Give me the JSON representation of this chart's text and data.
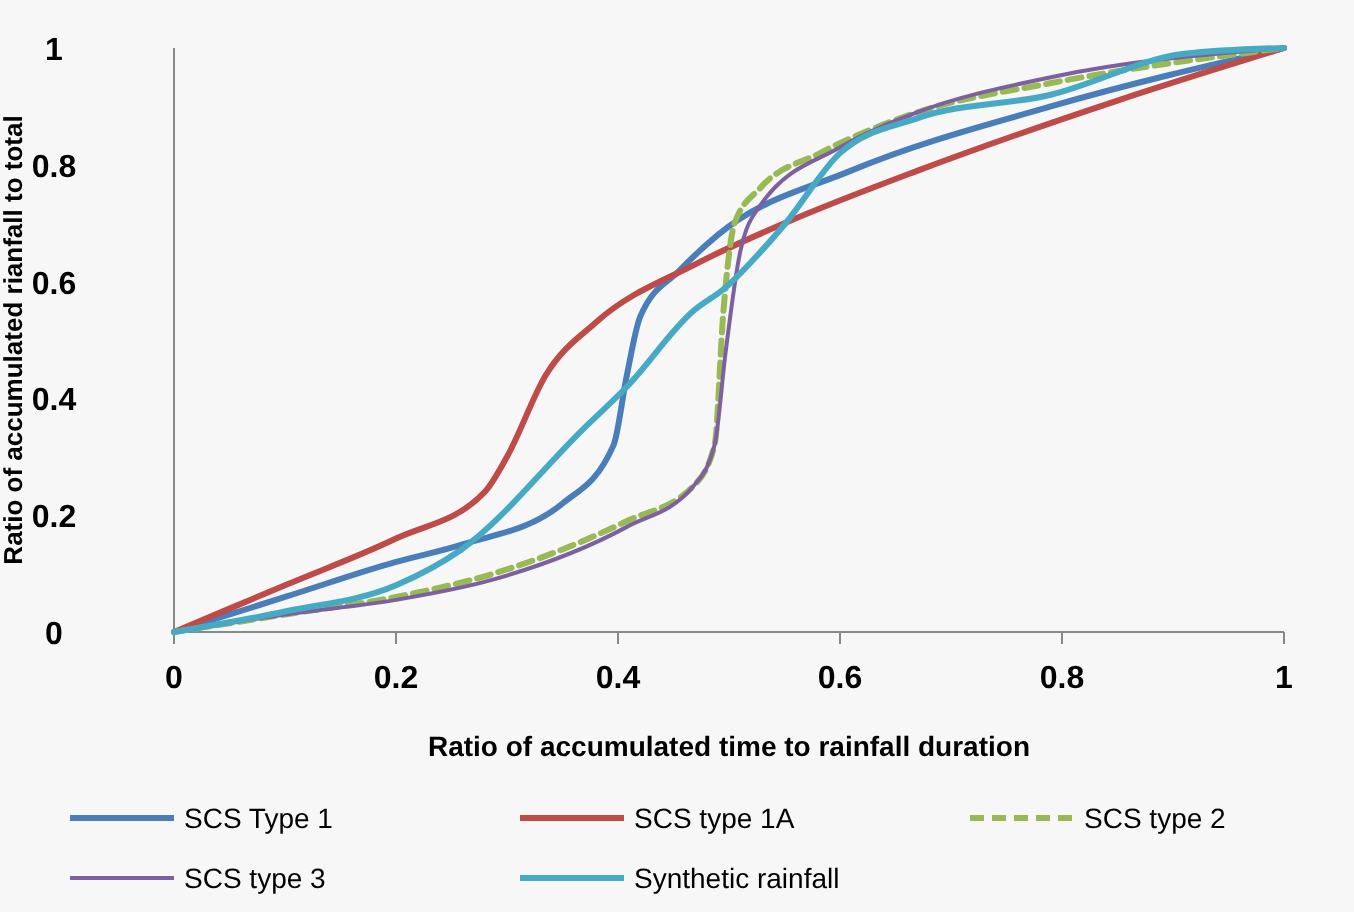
{
  "chart_data": {
    "type": "line",
    "xlabel": "Ratio of accumulated time to rainfall duration",
    "ylabel": "Ratio of accumulated rianfall to total",
    "xlim": [
      0,
      1
    ],
    "ylim": [
      0,
      1
    ],
    "xticks": [
      0,
      0.2,
      0.4,
      0.6,
      0.8,
      1
    ],
    "yticks": [
      0,
      0.2,
      0.4,
      0.6,
      0.8,
      1
    ],
    "grid": false,
    "legend": "bottom",
    "marker": "none",
    "series": [
      {
        "name": "SCS Type 1",
        "color": "#4a7ebb",
        "line_style": "solid",
        "x": [
          0,
          0.1,
          0.2,
          0.26,
          0.35,
          0.396,
          0.408,
          0.42,
          0.456,
          0.49,
          0.61,
          0.79,
          1
        ],
        "values": [
          0,
          0.06,
          0.12,
          0.15,
          0.22,
          0.32,
          0.44,
          0.54,
          0.62,
          0.68,
          0.79,
          0.9,
          1
        ]
      },
      {
        "name": "SCS type 1A",
        "color": "#be4b48",
        "line_style": "solid",
        "x": [
          0,
          0.1,
          0.2,
          0.28,
          0.3,
          0.335,
          0.38,
          0.47,
          0.55,
          0.67,
          0.85,
          1
        ],
        "values": [
          0,
          0.08,
          0.16,
          0.24,
          0.3,
          0.44,
          0.53,
          0.63,
          0.7,
          0.79,
          0.91,
          1
        ]
      },
      {
        "name": "SCS type 2",
        "color": "#98b954",
        "line_style": "dashed",
        "x": [
          0,
          0.1,
          0.2,
          0.288,
          0.408,
          0.468,
          0.487,
          0.495,
          0.505,
          0.528,
          0.582,
          0.67,
          0.79,
          1
        ],
        "values": [
          0,
          0.03,
          0.06,
          0.1,
          0.19,
          0.25,
          0.32,
          0.55,
          0.7,
          0.76,
          0.82,
          0.89,
          0.94,
          1
        ]
      },
      {
        "name": "SCS type 3",
        "color": "#7d60a0",
        "line_style": "solid",
        "x": [
          0,
          0.1,
          0.2,
          0.288,
          0.408,
          0.468,
          0.487,
          0.497,
          0.51,
          0.528,
          0.6,
          0.67,
          0.79,
          1
        ],
        "values": [
          0,
          0.03,
          0.055,
          0.09,
          0.18,
          0.25,
          0.32,
          0.48,
          0.65,
          0.73,
          0.83,
          0.89,
          0.95,
          1
        ]
      },
      {
        "name": "Synthetic rainfall",
        "color": "#46aac5",
        "line_style": "solid",
        "x": [
          0,
          0.1,
          0.2,
          0.258,
          0.37,
          0.408,
          0.468,
          0.497,
          0.528,
          0.551,
          0.6,
          0.67,
          0.79,
          0.91,
          1
        ],
        "values": [
          0,
          0.035,
          0.08,
          0.14,
          0.35,
          0.42,
          0.55,
          0.59,
          0.65,
          0.7,
          0.82,
          0.88,
          0.92,
          0.99,
          1
        ]
      }
    ]
  }
}
